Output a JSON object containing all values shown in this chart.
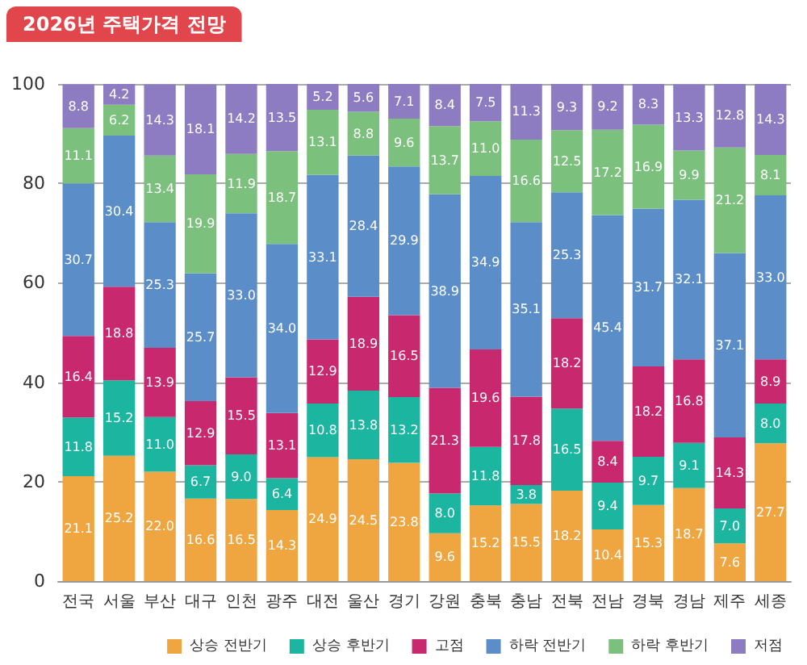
{
  "chart_data": {
    "type": "bar",
    "stacked": true,
    "title": "2026년 주택가격 전망",
    "categories": [
      "전국",
      "서울",
      "부산",
      "대구",
      "인천",
      "광주",
      "대전",
      "울산",
      "경기",
      "강원",
      "충북",
      "충남",
      "전북",
      "전남",
      "경북",
      "경남",
      "제주",
      "세종"
    ],
    "series": [
      {
        "name": "상승 전반기",
        "color": "#f0a640",
        "values": [
          21.1,
          25.2,
          22.0,
          16.6,
          16.5,
          14.3,
          24.9,
          24.5,
          23.8,
          9.6,
          15.2,
          15.5,
          18.2,
          10.4,
          15.3,
          18.7,
          7.6,
          27.7
        ],
        "value_labels": [
          "21.1",
          "25.2",
          "22.0",
          "16.6",
          "16.5",
          "14.3",
          "24.9",
          "24.5",
          "23.8",
          "9.6",
          "15.2",
          "15.5",
          "18.2",
          "10.4",
          "15.3",
          "18.7",
          "7.6",
          "27.7"
        ]
      },
      {
        "name": "상승 후반기",
        "color": "#1bb5a0",
        "values": [
          11.8,
          15.2,
          11.0,
          6.7,
          9.0,
          6.4,
          10.8,
          13.8,
          13.2,
          8.0,
          11.8,
          3.8,
          16.5,
          9.4,
          9.7,
          9.1,
          7.0,
          8.0
        ],
        "value_labels": [
          "11.8",
          "15.2",
          "11.0",
          "6.7",
          "9.0",
          "6.4",
          "10.8",
          "13.8",
          "13.2",
          "8.0",
          "11.8",
          "3.8",
          "16.5",
          "9.4",
          "9.7",
          "9.1",
          "7.0",
          "8.0"
        ]
      },
      {
        "name": "고점",
        "color": "#c8286e",
        "values": [
          16.4,
          18.8,
          13.9,
          12.9,
          15.5,
          13.1,
          12.9,
          18.9,
          16.5,
          21.3,
          19.6,
          17.8,
          18.2,
          8.4,
          18.2,
          16.8,
          14.3,
          8.9
        ],
        "value_labels": [
          "16.4",
          "18.8",
          "13.9",
          "12.9",
          "15.5",
          "13.1",
          "12.9",
          "18.9",
          "16.5",
          "21.3",
          "19.6",
          "17.8",
          "18.2",
          "8.4",
          "18.2",
          "16.8",
          "14.3",
          "8.9"
        ]
      },
      {
        "name": "하락 전반기",
        "color": "#5b8ec8",
        "values": [
          30.7,
          30.4,
          25.3,
          25.7,
          33.0,
          34.0,
          33.1,
          28.4,
          29.9,
          38.9,
          34.9,
          35.1,
          25.3,
          45.4,
          31.7,
          32.1,
          37.1,
          33.0
        ],
        "value_labels": [
          "30.7",
          "30.4",
          "25.3",
          "25.7",
          "33.0",
          "34.0",
          "33.1",
          "28.4",
          "29.9",
          "38.9",
          "34.9",
          "35.1",
          "25.3",
          "45.4",
          "31.7",
          "32.1",
          "37.1",
          "33.0"
        ]
      },
      {
        "name": "하락 후반기",
        "color": "#7cc07e",
        "values": [
          11.1,
          6.2,
          13.4,
          19.9,
          11.9,
          18.7,
          13.1,
          8.8,
          9.6,
          13.7,
          11.0,
          16.6,
          12.5,
          17.2,
          16.9,
          9.9,
          21.2,
          8.1
        ],
        "value_labels": [
          "11.1",
          "6.2",
          "13.4",
          "19.9",
          "11.9",
          "18.7",
          "13.1",
          "8.8",
          "9.6",
          "13.7",
          "11.0",
          "16.6",
          "12.5",
          "17.2",
          "16.9",
          "9.9",
          "21.2",
          "8.1"
        ]
      },
      {
        "name": "저점",
        "color": "#8e7cc3",
        "values": [
          8.8,
          4.2,
          14.3,
          18.1,
          14.2,
          13.5,
          5.2,
          5.6,
          7.1,
          8.4,
          7.5,
          11.3,
          9.3,
          9.2,
          8.3,
          13.3,
          12.8,
          14.3
        ],
        "value_labels": [
          "8.8",
          "4.2",
          "14.3",
          "18.1",
          "14.2",
          "13.5",
          "5.2",
          "5.6",
          "7.1",
          "8.4",
          "7.5",
          "11.3",
          "9.3",
          "9.2",
          "8.3",
          "13.3",
          "12.8",
          "14.3"
        ]
      }
    ],
    "ylim": [
      0,
      100
    ],
    "yticks": [
      0,
      20,
      40,
      60,
      80,
      100
    ],
    "grid": "y",
    "legend": "bottom"
  }
}
